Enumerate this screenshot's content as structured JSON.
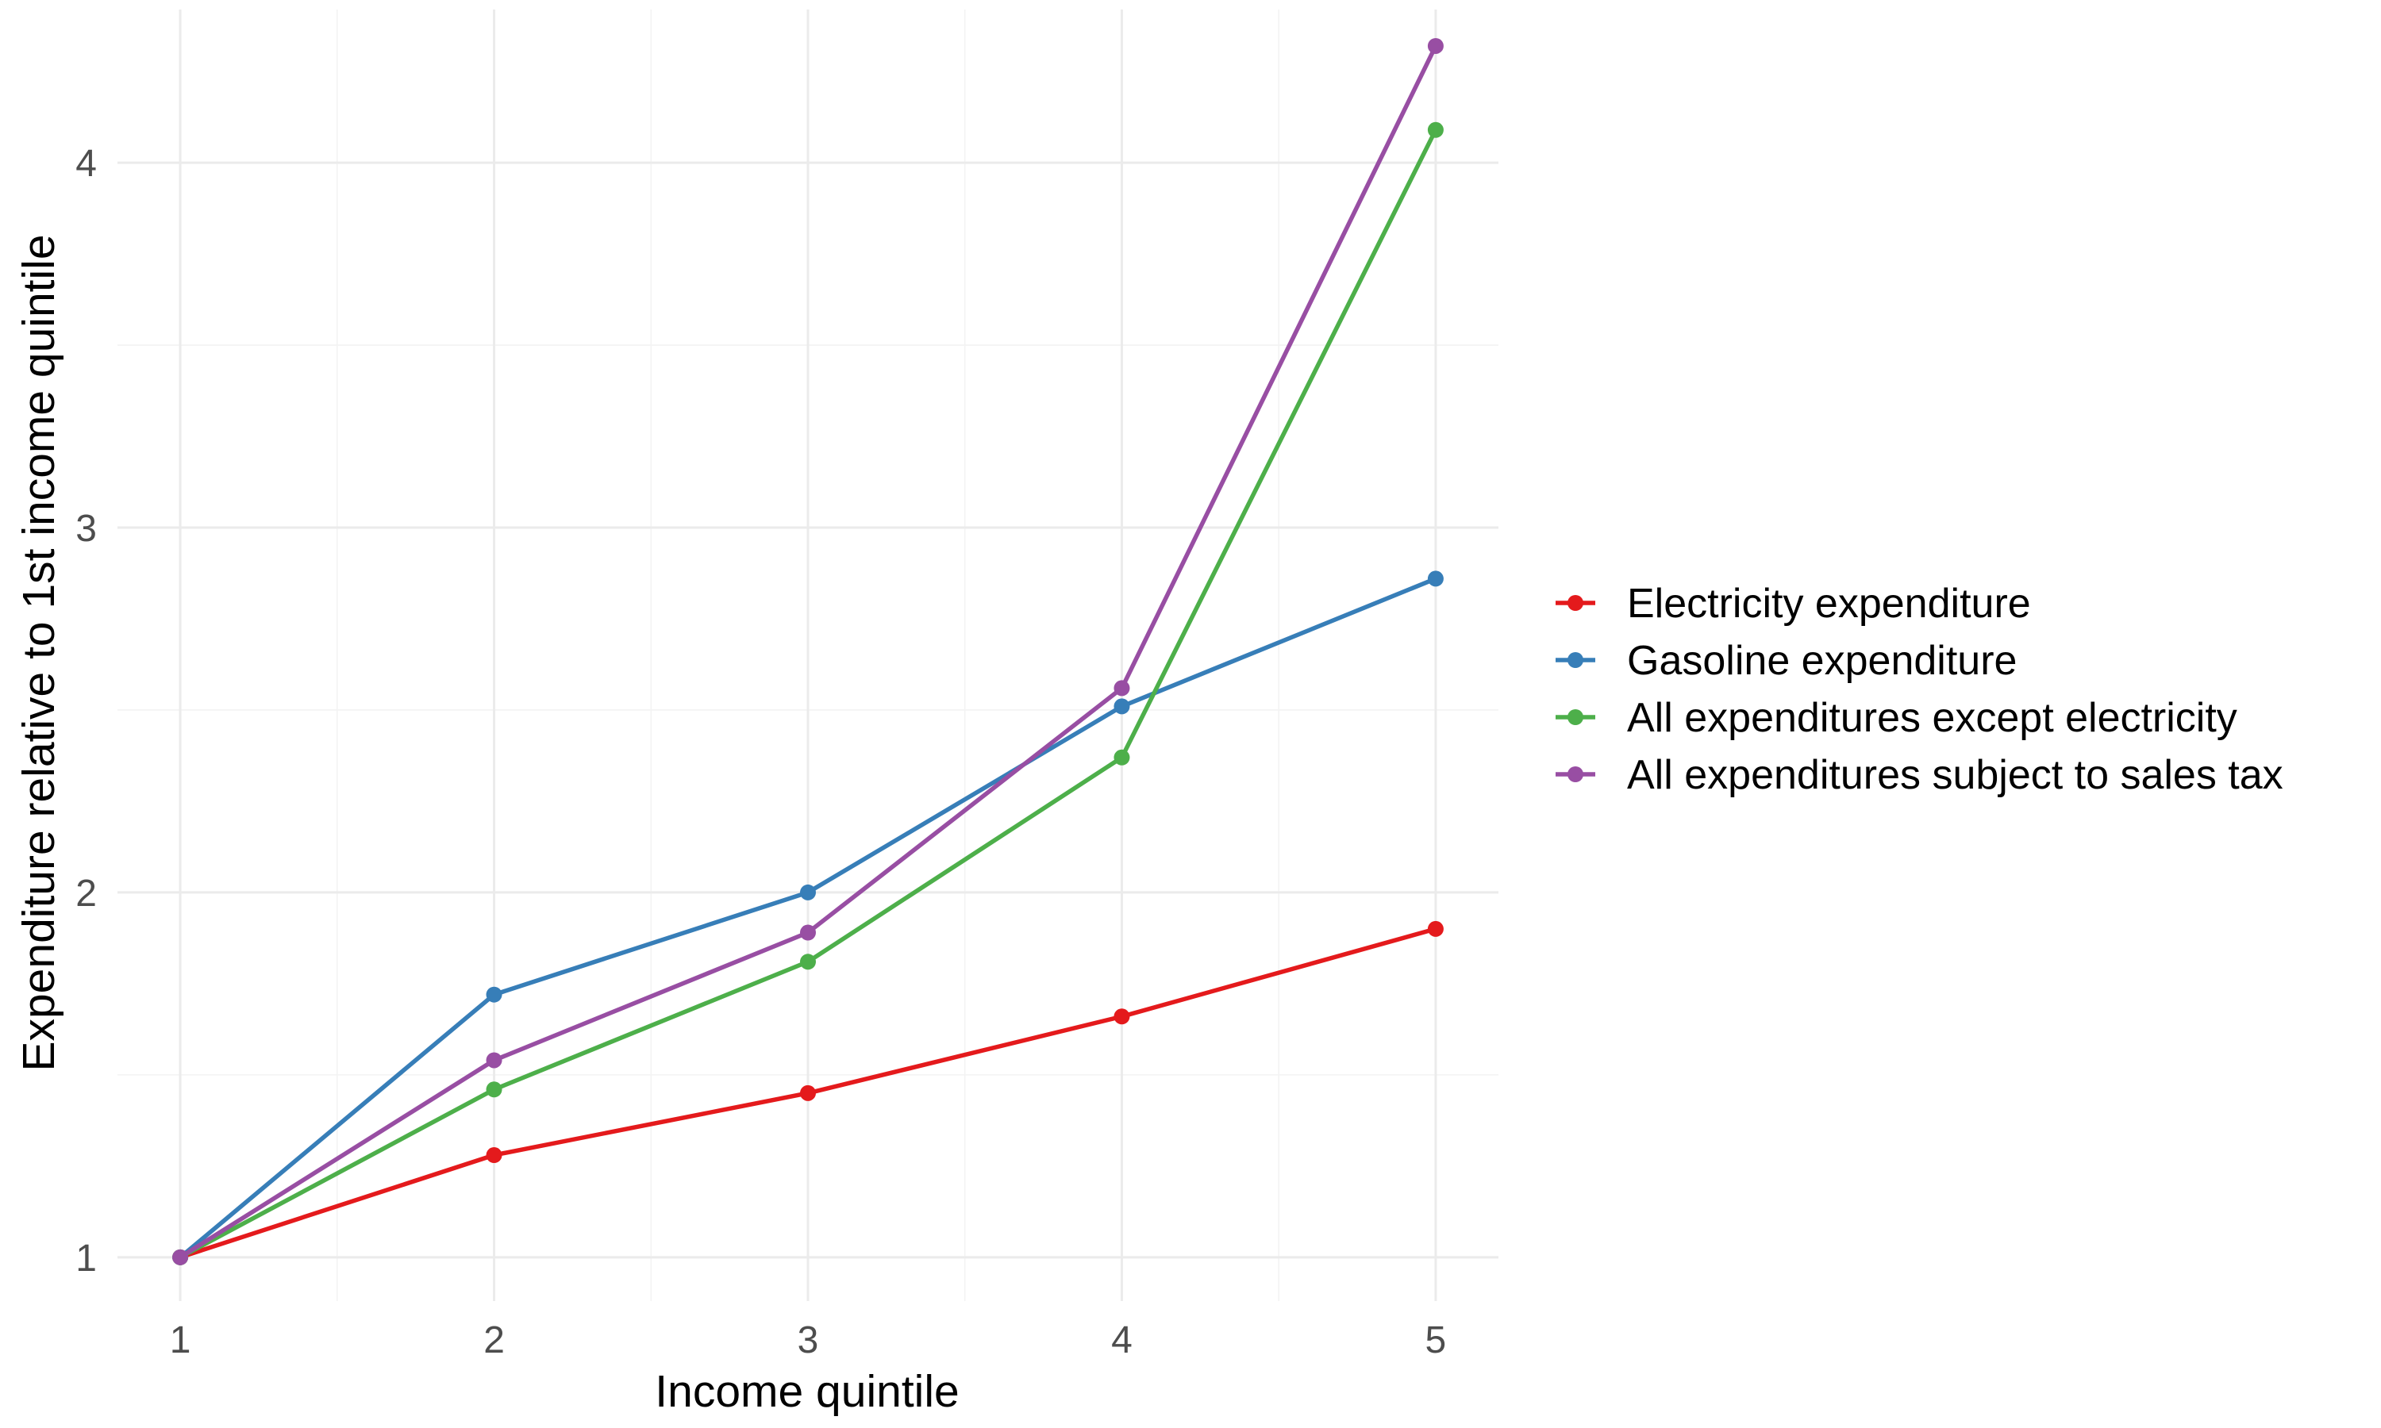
{
  "chart_data": {
    "type": "line",
    "title": "",
    "xlabel": "Income quintile",
    "ylabel": "Expenditure relative to 1st income quintile",
    "x": [
      1,
      2,
      3,
      4,
      5
    ],
    "x_ticks": [
      "1",
      "2",
      "3",
      "4",
      "5"
    ],
    "y_ticks": [
      "1",
      "2",
      "3",
      "4"
    ],
    "xlim": [
      0.8,
      5.2
    ],
    "ylim": [
      0.88,
      4.42
    ],
    "grid": true,
    "legend_position": "right",
    "series": [
      {
        "name": "Electricity expenditure",
        "color": "#e41a1c",
        "values": [
          1.0,
          1.28,
          1.45,
          1.66,
          1.9
        ]
      },
      {
        "name": "Gasoline expenditure",
        "color": "#377eb8",
        "values": [
          1.0,
          1.72,
          2.0,
          2.51,
          2.86
        ]
      },
      {
        "name": "All expenditures except electricity",
        "color": "#4daf4a",
        "values": [
          1.0,
          1.46,
          1.81,
          2.37,
          4.09
        ]
      },
      {
        "name": "All expenditures subject to sales tax",
        "color": "#984ea3",
        "values": [
          1.0,
          1.54,
          1.89,
          2.56,
          4.32
        ]
      }
    ]
  }
}
